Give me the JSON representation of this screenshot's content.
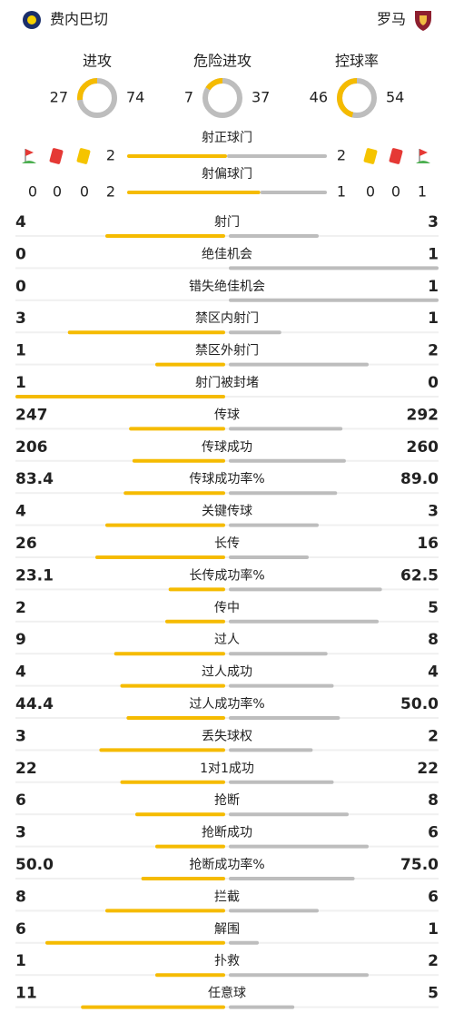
{
  "header": {
    "home": "费内巴切",
    "away": "罗马"
  },
  "donuts": [
    {
      "label": "进攻",
      "home": 27,
      "away": 74
    },
    {
      "label": "危险进攻",
      "home": 7,
      "away": 37
    },
    {
      "label": "控球率",
      "home": 46,
      "away": 54
    }
  ],
  "shots_on_target": {
    "label": "射正球门",
    "home": 2,
    "away": 2
  },
  "shots_off_target": {
    "label": "射偏球门",
    "home": 2,
    "away": 1
  },
  "home_cards": {
    "corners": 0,
    "red": 0,
    "yellow": 0
  },
  "away_cards": {
    "corners": 1,
    "red": 0,
    "yellow": 0
  },
  "stats": [
    {
      "label": "射门",
      "home": 4,
      "away": 3
    },
    {
      "label": "绝佳机会",
      "home": 0,
      "away": 1
    },
    {
      "label": "错失绝佳机会",
      "home": 0,
      "away": 1
    },
    {
      "label": "禁区内射门",
      "home": 3,
      "away": 1
    },
    {
      "label": "禁区外射门",
      "home": 1,
      "away": 2
    },
    {
      "label": "射门被封堵",
      "home": 1,
      "away": 0
    },
    {
      "label": "传球",
      "home": 247,
      "away": 292
    },
    {
      "label": "传球成功",
      "home": 206,
      "away": 260
    },
    {
      "label": "传球成功率%",
      "home": 83.4,
      "away": "89.0"
    },
    {
      "label": "关键传球",
      "home": 4,
      "away": 3
    },
    {
      "label": "长传",
      "home": 26,
      "away": 16
    },
    {
      "label": "长传成功率%",
      "home": 23.1,
      "away": 62.5
    },
    {
      "label": "传中",
      "home": 2,
      "away": 5
    },
    {
      "label": "过人",
      "home": 9,
      "away": 8
    },
    {
      "label": "过人成功",
      "home": 4,
      "away": 4
    },
    {
      "label": "过人成功率%",
      "home": 44.4,
      "away": "50.0"
    },
    {
      "label": "丢失球权",
      "home": 3,
      "away": 2
    },
    {
      "label": "1对1成功",
      "home": 22,
      "away": 22
    },
    {
      "label": "抢断",
      "home": 6,
      "away": 8
    },
    {
      "label": "抢断成功",
      "home": 3,
      "away": 6
    },
    {
      "label": "抢断成功率%",
      "home": "50.0",
      "away": "75.0"
    },
    {
      "label": "拦截",
      "home": 8,
      "away": 6
    },
    {
      "label": "解围",
      "home": 6,
      "away": 1
    },
    {
      "label": "扑救",
      "home": 1,
      "away": 2
    },
    {
      "label": "任意球",
      "home": 11,
      "away": 5
    }
  ]
}
